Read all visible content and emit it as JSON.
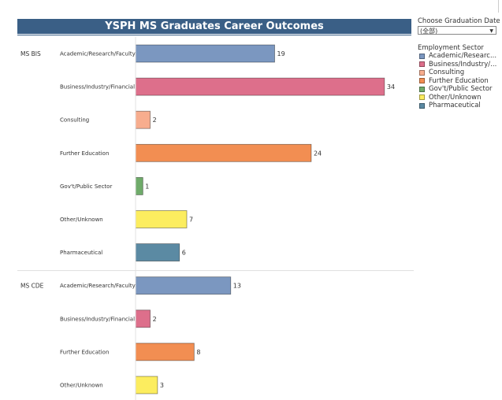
{
  "filter": {
    "title": "Choose Graduation Date",
    "value": "(全部)"
  },
  "legend": {
    "title": "Employment Sector",
    "items": [
      {
        "label": "Academic/Researc...",
        "color": "#7b97c0"
      },
      {
        "label": "Business/Industry/...",
        "color": "#dd6f8b"
      },
      {
        "label": "Consulting",
        "color": "#f7ad8e"
      },
      {
        "label": "Further Education",
        "color": "#f28e52"
      },
      {
        "label": "Gov't/Public Sector",
        "color": "#6fab6a"
      },
      {
        "label": "Other/Unknown",
        "color": "#fced5f"
      },
      {
        "label": "Pharmaceutical",
        "color": "#5b8aa3"
      }
    ]
  },
  "chart_data": {
    "type": "bar",
    "orientation": "horizontal",
    "title": "YSPH MS Graduates Career Outcomes",
    "groups": [
      {
        "name": "MS BIS",
        "bars": [
          {
            "category": "Academic/Research/Faculty",
            "value": 19,
            "color": "#7b97c0"
          },
          {
            "category": "Business/Industry/Financial",
            "value": 34,
            "color": "#dd6f8b"
          },
          {
            "category": "Consulting",
            "value": 2,
            "color": "#f7ad8e"
          },
          {
            "category": "Further Education",
            "value": 24,
            "color": "#f28e52"
          },
          {
            "category": "Gov't/Public Sector",
            "value": 1,
            "color": "#6fab6a"
          },
          {
            "category": "Other/Unknown",
            "value": 7,
            "color": "#fced5f"
          },
          {
            "category": "Pharmaceutical",
            "value": 6,
            "color": "#5b8aa3"
          }
        ]
      },
      {
        "name": "MS CDE",
        "bars": [
          {
            "category": "Academic/Research/Faculty",
            "value": 13,
            "color": "#7b97c0"
          },
          {
            "category": "Business/Industry/Financial",
            "value": 2,
            "color": "#dd6f8b"
          },
          {
            "category": "Further Education",
            "value": 8,
            "color": "#f28e52"
          },
          {
            "category": "Other/Unknown",
            "value": 3,
            "color": "#fced5f"
          }
        ]
      }
    ],
    "xlim": [
      0,
      34
    ],
    "grid": false,
    "legend_position": "right"
  }
}
